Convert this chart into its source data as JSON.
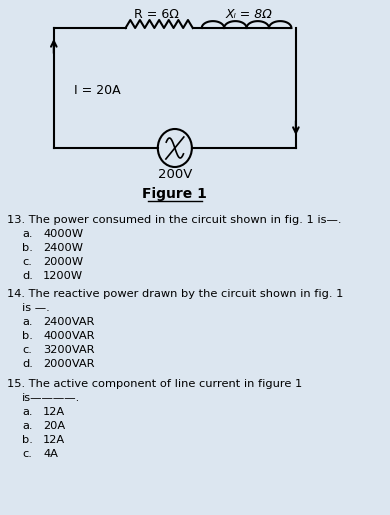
{
  "bg_color": "#dce6f0",
  "title": "Figure 1",
  "circuit": {
    "R_label": "R = 6Ω",
    "XL_label": "Xₗ = 8Ω",
    "I_label": "I = 20A",
    "V_label": "200V"
  },
  "q13": {
    "text": "13. The power consumed in the circuit shown in fig. 1 is—.",
    "options": [
      [
        "a.",
        "4000W"
      ],
      [
        "b.",
        "2400W"
      ],
      [
        "c.",
        "2000W"
      ],
      [
        "d.",
        "1200W"
      ]
    ]
  },
  "q14": {
    "line1": "14. The reactive power drawn by the circuit shown in fig. 1",
    "line2": "is —.",
    "options": [
      [
        "a.",
        "2400VAR"
      ],
      [
        "b.",
        "4000VAR"
      ],
      [
        "c.",
        "3200VAR"
      ],
      [
        "d.",
        "2000VAR"
      ]
    ]
  },
  "q15": {
    "line1": "15. The active component of line current in figure 1",
    "line2": "is————.",
    "options": [
      [
        "a.",
        "12A"
      ],
      [
        "a.",
        "20A"
      ],
      [
        "b.",
        "12A"
      ],
      [
        "c.",
        "4A"
      ]
    ]
  }
}
